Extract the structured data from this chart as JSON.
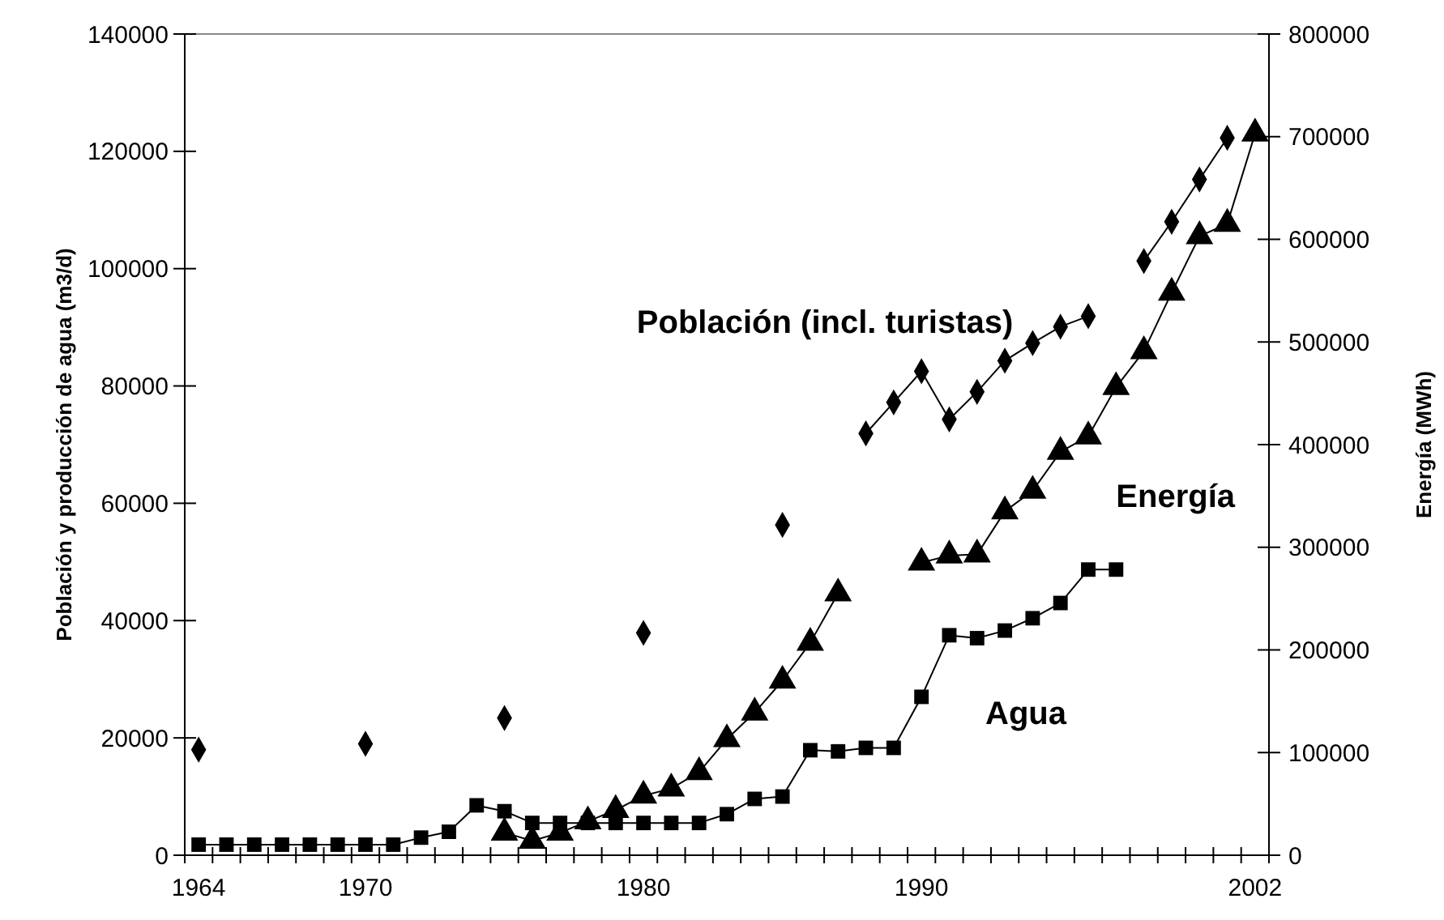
{
  "chart_data": {
    "type": "line",
    "x": [
      1964,
      1965,
      1966,
      1967,
      1968,
      1969,
      1970,
      1971,
      1972,
      1973,
      1974,
      1975,
      1976,
      1977,
      1978,
      1979,
      1980,
      1981,
      1982,
      1983,
      1984,
      1985,
      1986,
      1987,
      1988,
      1989,
      1990,
      1991,
      1992,
      1993,
      1994,
      1995,
      1996,
      1997,
      1998,
      1999,
      2000,
      2001,
      2002
    ],
    "xlim": [
      1963.5,
      2002.5
    ],
    "xticks": [
      {
        "value": 1963.5,
        "label": null
      },
      {
        "value": 1964,
        "label": "1964"
      },
      {
        "value": 1964.5,
        "label": null
      },
      {
        "value": 1965.5,
        "label": null
      },
      {
        "value": 1966.5,
        "label": null
      },
      {
        "value": 1967.5,
        "label": null
      },
      {
        "value": 1968.5,
        "label": null
      },
      {
        "value": 1969.5,
        "label": null
      },
      {
        "value": 1970,
        "label": "1970"
      },
      {
        "value": 1970.5,
        "label": null
      },
      {
        "value": 1971.5,
        "label": null
      },
      {
        "value": 1972.5,
        "label": null
      },
      {
        "value": 1973.5,
        "label": null
      },
      {
        "value": 1974.5,
        "label": null
      },
      {
        "value": 1975.5,
        "label": null
      },
      {
        "value": 1976.5,
        "label": null
      },
      {
        "value": 1977.5,
        "label": null
      },
      {
        "value": 1978.5,
        "label": null
      },
      {
        "value": 1979.5,
        "label": null
      },
      {
        "value": 1980,
        "label": "1980"
      },
      {
        "value": 1980.5,
        "label": null
      },
      {
        "value": 1981.5,
        "label": null
      },
      {
        "value": 1982.5,
        "label": null
      },
      {
        "value": 1983.5,
        "label": null
      },
      {
        "value": 1984.5,
        "label": null
      },
      {
        "value": 1985.5,
        "label": null
      },
      {
        "value": 1986.5,
        "label": null
      },
      {
        "value": 1987.5,
        "label": null
      },
      {
        "value": 1988.5,
        "label": null
      },
      {
        "value": 1989.5,
        "label": null
      },
      {
        "value": 1990,
        "label": "1990"
      },
      {
        "value": 1990.5,
        "label": null
      },
      {
        "value": 1991.5,
        "label": null
      },
      {
        "value": 1992.5,
        "label": null
      },
      {
        "value": 1993.5,
        "label": null
      },
      {
        "value": 1994.5,
        "label": null
      },
      {
        "value": 1995.5,
        "label": null
      },
      {
        "value": 1996.5,
        "label": null
      },
      {
        "value": 1997.5,
        "label": null
      },
      {
        "value": 1998.5,
        "label": null
      },
      {
        "value": 1999.5,
        "label": null
      },
      {
        "value": 2000.5,
        "label": null
      },
      {
        "value": 2001.5,
        "label": null
      },
      {
        "value": 2002,
        "label": "2002"
      },
      {
        "value": 2002.5,
        "label": null
      }
    ],
    "ylim": [
      0,
      140000
    ],
    "yticks": [
      0,
      20000,
      40000,
      60000,
      80000,
      100000,
      120000,
      140000
    ],
    "y2lim": [
      0,
      800000
    ],
    "y2ticks": [
      0,
      100000,
      200000,
      300000,
      400000,
      500000,
      600000,
      700000,
      800000
    ],
    "ylabel": "Población y producción de agua (m3/d)",
    "y2label": "Energía (MWh)",
    "grid": false,
    "series": [
      {
        "name": "Población (incl. turistas)",
        "color": "#000000",
        "marker": "diamond",
        "values": [
          18000,
          null,
          null,
          null,
          null,
          null,
          19000,
          null,
          null,
          null,
          null,
          23400,
          null,
          null,
          null,
          null,
          37900,
          null,
          null,
          null,
          null,
          56300,
          null,
          null,
          71900,
          77200,
          82500,
          74300,
          79000,
          84300,
          87300,
          90100,
          91900,
          null,
          101300,
          108000,
          115200,
          122300,
          null
        ]
      },
      {
        "name": "Energía",
        "color": "#000000",
        "marker": "triangle",
        "axis": "y2",
        "values": [
          null,
          null,
          null,
          null,
          null,
          null,
          null,
          null,
          null,
          null,
          null,
          22000,
          14000,
          22000,
          33000,
          44000,
          58000,
          65000,
          81000,
          113000,
          139000,
          170000,
          207000,
          255000,
          null,
          null,
          285000,
          292000,
          293000,
          335000,
          355000,
          393000,
          408000,
          456000,
          491000,
          548000,
          603000,
          615000,
          703000
        ]
      },
      {
        "name": "Agua",
        "color": "#000000",
        "marker": "square",
        "values": [
          1800,
          1800,
          1800,
          1800,
          1800,
          1800,
          1800,
          1800,
          3000,
          4000,
          8500,
          7500,
          5500,
          5500,
          5500,
          5500,
          5500,
          5500,
          5500,
          7000,
          9600,
          10000,
          17900,
          17700,
          18300,
          18300,
          27000,
          37500,
          37000,
          38300,
          40400,
          43000,
          48700,
          48700,
          null,
          null,
          null,
          null,
          null
        ]
      }
    ]
  }
}
